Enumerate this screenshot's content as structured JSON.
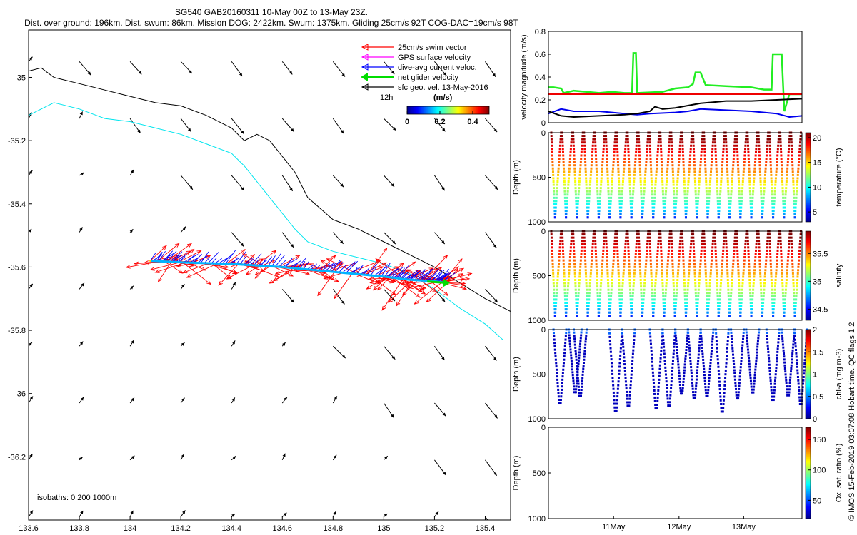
{
  "header": {
    "line1": "SG540 GAB20160311 10-May 00Z to 13-May 23Z.",
    "line2": "Dist. over ground: 196km. Dist. swum: 86km. Mission DOG: 2422km. Swum: 1375km. Gliding 25cm/s 92T COG-DAC=19cm/s 98T"
  },
  "colors": {
    "swim": "#ff0000",
    "gps": "#ff00ff",
    "dac": "#0000ff",
    "net": "#00dd00",
    "sfc": "#000000",
    "isobath200": "#00e5ee",
    "isobath1000": "#000000",
    "speed_swim": "#22ee22",
    "speed_ref": "#ee0000",
    "speed_dac": "#0000ee",
    "speed_sfc": "#000000"
  },
  "chart_data": [
    {
      "type": "map",
      "name": "track-map",
      "xlim": [
        133.6,
        135.5
      ],
      "ylim": [
        -36.4,
        -34.85
      ],
      "xticks": [
        133.6,
        133.8,
        134,
        134.2,
        134.4,
        134.6,
        134.8,
        135,
        135.2,
        135.4
      ],
      "xtick_labels": [
        "133.6",
        "133.8",
        "134",
        "134.2",
        "134.4",
        "134.6",
        "134.8",
        "135",
        "135.2",
        "135.4"
      ],
      "yticks": [
        -35,
        -35.2,
        -35.4,
        -35.6,
        -35.8,
        -36,
        -36.2
      ],
      "ytick_labels": [
        "-35",
        "-35.2",
        "-35.4",
        "-35.6",
        "-35.8",
        "-36",
        "-36.2"
      ],
      "legend": {
        "items": [
          "25cm/s swim vector",
          "GPS surface velocity",
          "dive-avg current veloc.",
          "net glider velocity",
          "sfc geo. vel. 13-May-2016"
        ],
        "timescale": "12h",
        "colorbar_title": "(m/s)",
        "colorbar_ticks": [
          "0",
          "0.2",
          "0.4"
        ],
        "colorbar_range": [
          0,
          0.5
        ]
      },
      "isobaths_label": "isobaths: 0   200  1000m",
      "isobath_200": [
        [
          133.6,
          -35.12
        ],
        [
          133.7,
          -35.08
        ],
        [
          133.8,
          -35.1
        ],
        [
          133.9,
          -35.13
        ],
        [
          134.0,
          -35.14
        ],
        [
          134.1,
          -35.16
        ],
        [
          134.2,
          -35.18
        ],
        [
          134.3,
          -35.21
        ],
        [
          134.4,
          -35.24
        ],
        [
          134.45,
          -35.28
        ],
        [
          134.5,
          -35.33
        ],
        [
          134.55,
          -35.38
        ],
        [
          134.6,
          -35.43
        ],
        [
          134.65,
          -35.48
        ],
        [
          134.7,
          -35.52
        ],
        [
          134.8,
          -35.55
        ],
        [
          134.9,
          -35.57
        ],
        [
          135.0,
          -35.59
        ],
        [
          135.1,
          -35.62
        ],
        [
          135.2,
          -35.67
        ],
        [
          135.3,
          -35.73
        ],
        [
          135.4,
          -35.78
        ],
        [
          135.47,
          -35.83
        ]
      ],
      "isobath_1000": [
        [
          133.6,
          -34.98
        ],
        [
          133.65,
          -34.97
        ],
        [
          133.7,
          -35.0
        ],
        [
          133.8,
          -35.02
        ],
        [
          133.9,
          -35.04
        ],
        [
          134.0,
          -35.06
        ],
        [
          134.1,
          -35.08
        ],
        [
          134.2,
          -35.09
        ],
        [
          134.3,
          -35.12
        ],
        [
          134.4,
          -35.16
        ],
        [
          134.45,
          -35.2
        ],
        [
          134.5,
          -35.18
        ],
        [
          134.55,
          -35.2
        ],
        [
          134.6,
          -35.25
        ],
        [
          134.65,
          -35.3
        ],
        [
          134.7,
          -35.38
        ],
        [
          134.8,
          -35.45
        ],
        [
          134.9,
          -35.48
        ],
        [
          135.0,
          -35.52
        ],
        [
          135.1,
          -35.56
        ],
        [
          135.2,
          -35.6
        ],
        [
          135.3,
          -35.65
        ],
        [
          135.4,
          -35.7
        ],
        [
          135.5,
          -35.74
        ]
      ],
      "track": [
        [
          134.08,
          -35.58
        ],
        [
          134.2,
          -35.585
        ],
        [
          134.4,
          -35.59
        ],
        [
          134.6,
          -35.6
        ],
        [
          134.8,
          -35.615
        ],
        [
          135.0,
          -35.63
        ],
        [
          135.1,
          -35.64
        ],
        [
          135.2,
          -35.645
        ],
        [
          135.25,
          -35.65
        ]
      ],
      "track_color_speed": 0.15
    },
    {
      "type": "line",
      "name": "velocity-panel",
      "ylabel": "velocity magnitude (m/s)",
      "ylim": [
        0,
        0.8
      ],
      "yticks": [
        "0",
        "0.2",
        "0.4",
        "0.6",
        "0.8"
      ],
      "series": [
        {
          "name": "swim speed",
          "color": "#22ee22",
          "points": [
            [
              0,
              0.31
            ],
            [
              0.02,
              0.31
            ],
            [
              0.05,
              0.3
            ],
            [
              0.06,
              0.26
            ],
            [
              0.1,
              0.28
            ],
            [
              0.15,
              0.27
            ],
            [
              0.2,
              0.26
            ],
            [
              0.25,
              0.27
            ],
            [
              0.3,
              0.26
            ],
            [
              0.33,
              0.26
            ],
            [
              0.335,
              0.61
            ],
            [
              0.345,
              0.61
            ],
            [
              0.35,
              0.26
            ],
            [
              0.45,
              0.27
            ],
            [
              0.5,
              0.3
            ],
            [
              0.55,
              0.31
            ],
            [
              0.57,
              0.34
            ],
            [
              0.58,
              0.44
            ],
            [
              0.6,
              0.44
            ],
            [
              0.62,
              0.33
            ],
            [
              0.7,
              0.32
            ],
            [
              0.8,
              0.31
            ],
            [
              0.85,
              0.29
            ],
            [
              0.88,
              0.29
            ],
            [
              0.885,
              0.6
            ],
            [
              0.92,
              0.6
            ],
            [
              0.93,
              0.1
            ],
            [
              0.95,
              0.25
            ],
            [
              1.0,
              0.25
            ]
          ]
        },
        {
          "name": "reference 25cm/s",
          "color": "#ee0000",
          "points": [
            [
              0,
              0.25
            ],
            [
              1,
              0.25
            ]
          ]
        },
        {
          "name": "dive-avg current",
          "color": "#0000ee",
          "points": [
            [
              0,
              0.08
            ],
            [
              0.05,
              0.12
            ],
            [
              0.1,
              0.1
            ],
            [
              0.2,
              0.1
            ],
            [
              0.25,
              0.09
            ],
            [
              0.3,
              0.08
            ],
            [
              0.35,
              0.07
            ],
            [
              0.4,
              0.08
            ],
            [
              0.5,
              0.09
            ],
            [
              0.55,
              0.1
            ],
            [
              0.6,
              0.12
            ],
            [
              0.7,
              0.11
            ],
            [
              0.8,
              0.1
            ],
            [
              0.9,
              0.08
            ],
            [
              0.95,
              0.05
            ],
            [
              1,
              0.06
            ]
          ]
        },
        {
          "name": "sfc geo. vel.",
          "color": "#000000",
          "points": [
            [
              0,
              0.1
            ],
            [
              0.05,
              0.06
            ],
            [
              0.1,
              0.05
            ],
            [
              0.2,
              0.06
            ],
            [
              0.3,
              0.07
            ],
            [
              0.35,
              0.08
            ],
            [
              0.4,
              0.1
            ],
            [
              0.42,
              0.14
            ],
            [
              0.45,
              0.12
            ],
            [
              0.5,
              0.13
            ],
            [
              0.55,
              0.15
            ],
            [
              0.6,
              0.17
            ],
            [
              0.65,
              0.18
            ],
            [
              0.7,
              0.19
            ],
            [
              0.8,
              0.19
            ],
            [
              0.9,
              0.2
            ],
            [
              1,
              0.21
            ]
          ]
        }
      ]
    },
    {
      "type": "scatter",
      "name": "temperature-panel",
      "ylabel": "Depth (m)",
      "ylim": [
        0,
        1000
      ],
      "yticks": [
        "0",
        "500",
        "1000"
      ],
      "n_dives": 23,
      "dive_depth": 950,
      "colorbar": {
        "label": "temperature (°C)",
        "ticks": [
          "5",
          "10",
          "15",
          "20"
        ],
        "range": [
          3,
          21
        ]
      }
    },
    {
      "type": "scatter",
      "name": "salinity-panel",
      "ylabel": "Depth (m)",
      "ylim": [
        0,
        1000
      ],
      "yticks": [
        "0",
        "500",
        "1000"
      ],
      "n_dives": 23,
      "dive_depth": 950,
      "colorbar": {
        "label": "salinity",
        "ticks": [
          "34.5",
          "35",
          "35.5"
        ],
        "range": [
          34.3,
          35.9
        ]
      }
    },
    {
      "type": "scatter",
      "name": "chla-panel",
      "ylabel": "Depth (m)",
      "ylim": [
        0,
        1000
      ],
      "yticks": [
        "0",
        "500",
        "1000"
      ],
      "colorbar": {
        "label": "chl-a (mg m-3)",
        "ticks": [
          "0",
          "0.5",
          "1",
          "1.5",
          "2"
        ],
        "range": [
          0,
          2
        ]
      }
    },
    {
      "type": "scatter",
      "name": "oxygen-panel",
      "ylabel": "Depth (m)",
      "ylim": [
        0,
        1000
      ],
      "yticks": [
        "0",
        "500",
        "1000"
      ],
      "xtick_labels": [
        "11May",
        "12May",
        "13May"
      ],
      "colorbar": {
        "label": "Ox. sat. ratio (%)",
        "ticks": [
          "50",
          "100",
          "150"
        ],
        "range": [
          20,
          170
        ]
      }
    }
  ],
  "side_note": "© IMOS 15-Feb-2019 03:07:08 Hobart time. QC flags 1  2"
}
